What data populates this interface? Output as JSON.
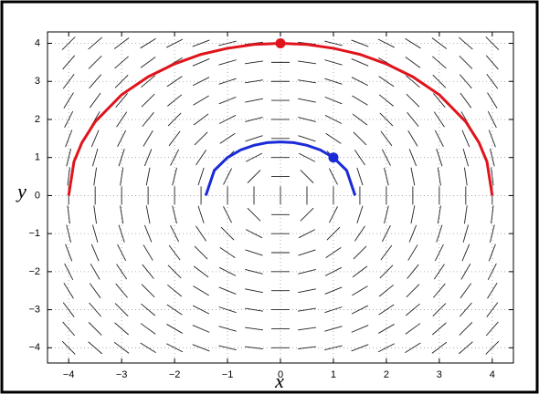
{
  "chart_data": {
    "type": "slope-field",
    "xlabel": "x",
    "ylabel": "y",
    "xlim": [
      -4.4,
      4.4
    ],
    "ylim": [
      -4.4,
      4.3
    ],
    "xticks": [
      {
        "value": -4,
        "label": "−4"
      },
      {
        "value": -3,
        "label": "−3"
      },
      {
        "value": -2,
        "label": "−2"
      },
      {
        "value": -1,
        "label": "−1"
      },
      0,
      1,
      2,
      3,
      4
    ],
    "yticks": [
      {
        "value": -4,
        "label": "−4"
      },
      {
        "value": -3,
        "label": "−3"
      },
      {
        "value": -2,
        "label": "−2"
      },
      {
        "value": -1,
        "label": "−1"
      },
      0,
      1,
      2,
      3,
      4
    ],
    "grid": true,
    "field": {
      "x": [
        -4,
        -3.5,
        -3,
        -2.5,
        -2,
        -1.5,
        -1,
        -0.5,
        0,
        0.5,
        1,
        1.5,
        2,
        2.5,
        3,
        3.5,
        4
      ],
      "y": [
        4,
        3.5,
        3,
        2.5,
        2,
        1.5,
        1,
        0.5,
        0,
        -0.5,
        -1,
        -1.5,
        -2,
        -2.5,
        -3,
        -3.5,
        -4
      ],
      "angles": [
        [
          45,
          41,
          37,
          32,
          27,
          21,
          14,
          7,
          0,
          -7,
          -14,
          -21,
          -27,
          -32,
          -37,
          -41,
          -45
        ],
        [
          49,
          45,
          41,
          36,
          30,
          23,
          16,
          8,
          0,
          -8,
          -16,
          -23,
          -30,
          -36,
          -41,
          -45,
          -49
        ],
        [
          53,
          49,
          45,
          40,
          34,
          27,
          18,
          9,
          0,
          -9,
          -18,
          -27,
          -34,
          -40,
          -45,
          -49,
          -53
        ],
        [
          58,
          54,
          50,
          45,
          39,
          31,
          22,
          11,
          0,
          -11,
          -22,
          -31,
          -39,
          -45,
          -50,
          -54,
          -58
        ],
        [
          63,
          60,
          56,
          51,
          45,
          37,
          27,
          14,
          0,
          -14,
          -27,
          -37,
          -45,
          -51,
          -56,
          -60,
          -63
        ],
        [
          69,
          67,
          63,
          59,
          53,
          45,
          34,
          18,
          0,
          -18,
          -34,
          -45,
          -53,
          -59,
          -63,
          -67,
          -69
        ],
        [
          76,
          74,
          72,
          68,
          63,
          56,
          45,
          27,
          0,
          -27,
          -45,
          -56,
          -63,
          -68,
          -72,
          -74,
          -76
        ],
        [
          83,
          82,
          81,
          79,
          76,
          72,
          63,
          45,
          0,
          -45,
          -63,
          -72,
          -76,
          -79,
          -81,
          -82,
          -83
        ],
        [
          90,
          90,
          90,
          90,
          90,
          90,
          90,
          90,
          90,
          90,
          90,
          90,
          90,
          90,
          90,
          90,
          90
        ],
        [
          -83,
          -82,
          -81,
          -79,
          -76,
          -72,
          -63,
          -45,
          0,
          45,
          63,
          72,
          76,
          79,
          81,
          82,
          83
        ],
        [
          -76,
          -74,
          -72,
          -68,
          -63,
          -56,
          -45,
          -27,
          0,
          27,
          45,
          56,
          63,
          68,
          72,
          74,
          76
        ],
        [
          -69,
          -67,
          -63,
          -59,
          -53,
          -45,
          -34,
          -18,
          0,
          18,
          34,
          45,
          53,
          59,
          63,
          67,
          69
        ],
        [
          -63,
          -60,
          -56,
          -51,
          -45,
          -37,
          -27,
          -14,
          0,
          14,
          27,
          37,
          45,
          51,
          56,
          60,
          63
        ],
        [
          -58,
          -54,
          -50,
          -45,
          -39,
          -31,
          -22,
          -11,
          0,
          11,
          22,
          31,
          39,
          45,
          50,
          54,
          58
        ],
        [
          -53,
          -49,
          -45,
          -40,
          -34,
          -27,
          -18,
          -9,
          0,
          9,
          18,
          27,
          34,
          40,
          45,
          49,
          53
        ],
        [
          -49,
          -45,
          -41,
          -36,
          -30,
          -23,
          -16,
          -8,
          0,
          8,
          16,
          23,
          30,
          36,
          41,
          45,
          49
        ],
        [
          -45,
          -41,
          -37,
          -32,
          -27,
          -21,
          -14,
          -7,
          0,
          7,
          14,
          21,
          27,
          32,
          37,
          41,
          45
        ]
      ]
    },
    "series": [
      {
        "color": "#e0141c",
        "x": [
          -4,
          -3.9,
          -3.75,
          -3.5,
          -3,
          -2.5,
          -2,
          -1.5,
          -1,
          -0.5,
          0,
          0.5,
          1,
          1.5,
          2,
          2.5,
          3,
          3.5,
          3.75,
          3.9,
          4
        ],
        "values": [
          0,
          0.89,
          1.39,
          1.94,
          2.65,
          3.12,
          3.46,
          3.71,
          3.87,
          3.97,
          4,
          3.97,
          3.87,
          3.71,
          3.46,
          3.12,
          2.65,
          1.94,
          1.39,
          0.89,
          0
        ]
      },
      {
        "color": "#1a2bd8",
        "x": [
          -1.41,
          -1.25,
          -1,
          -0.75,
          -0.5,
          -0.25,
          0,
          0.25,
          0.5,
          0.75,
          1,
          1.25,
          1.41
        ],
        "values": [
          0,
          0.66,
          1,
          1.2,
          1.32,
          1.39,
          1.41,
          1.39,
          1.32,
          1.2,
          1,
          0.66,
          0
        ]
      }
    ],
    "points": [
      {
        "x": 0,
        "y": 4,
        "color": "#e0141c"
      },
      {
        "x": 1,
        "y": 1,
        "color": "#1a2bd8"
      }
    ]
  }
}
